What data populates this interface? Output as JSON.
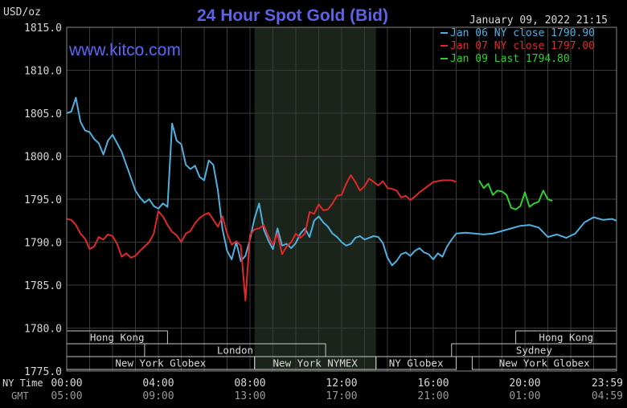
{
  "chart_data": {
    "type": "line",
    "title": "24 Hour Spot Gold (Bid)",
    "website": "www.kitco.com",
    "timestamp": "January 09, 2022 21:15",
    "unit_label": "USD/oz",
    "y_ticks": [
      1775.0,
      1780.0,
      1785.0,
      1790.0,
      1795.0,
      1800.0,
      1805.0,
      1810.0,
      1815.0
    ],
    "ylim": [
      1775.0,
      1815.0
    ],
    "xlim": [
      0,
      24
    ],
    "x_row_label": "NY Time",
    "gmt_row_label": "GMT",
    "x_ticks": [
      {
        "hour": 0,
        "ny": "00:00",
        "gmt": "05:00"
      },
      {
        "hour": 4,
        "ny": "04:00",
        "gmt": "09:00"
      },
      {
        "hour": 8,
        "ny": "08:00",
        "gmt": "13:00"
      },
      {
        "hour": 12,
        "ny": "12:00",
        "gmt": "17:00"
      },
      {
        "hour": 16,
        "ny": "16:00",
        "gmt": "21:00"
      },
      {
        "hour": 20,
        "ny": "20:00",
        "gmt": "01:00"
      },
      {
        "hour": 24,
        "ny": "23:59",
        "gmt": "04:59"
      }
    ],
    "highlight_band": {
      "start_hour": 8.2,
      "end_hour": 13.5
    },
    "grid": true,
    "legend_position": "top-right",
    "sessions": [
      {
        "label": "Hong Kong",
        "row": 0,
        "start": 0,
        "end": 4.4
      },
      {
        "label": "London",
        "row": 1,
        "start": 3.4,
        "end": 11.3
      },
      {
        "label": "New York Globex",
        "row": 2,
        "start": 0,
        "end": 8.2
      },
      {
        "label": "New York NYMEX",
        "row": 2,
        "start": 8.2,
        "end": 13.5
      },
      {
        "label": "NY Globex",
        "row": 2,
        "start": 13.5,
        "end": 17.0
      },
      {
        "label": "Hong Kong",
        "row": 0,
        "start": 19.6,
        "end": 24
      },
      {
        "label": "Sydney",
        "row": 1,
        "start": 16.8,
        "end": 24
      },
      {
        "label": "New York Globex",
        "row": 2,
        "start": 17.7,
        "end": 24
      }
    ],
    "series": [
      {
        "name": "Jan 06 NY close 1790.90",
        "color": "#4fb0e0",
        "x": [
          0,
          0.2,
          0.4,
          0.6,
          0.8,
          1.0,
          1.2,
          1.4,
          1.6,
          1.8,
          2.0,
          2.2,
          2.4,
          2.6,
          2.8,
          3.0,
          3.2,
          3.4,
          3.6,
          3.8,
          4.0,
          4.2,
          4.4,
          4.6,
          4.8,
          5.0,
          5.2,
          5.4,
          5.6,
          5.8,
          6.0,
          6.2,
          6.4,
          6.6,
          6.8,
          7.0,
          7.2,
          7.4,
          7.6,
          7.8,
          8.0,
          8.2,
          8.4,
          8.6,
          8.8,
          9.0,
          9.2,
          9.4,
          9.6,
          9.8,
          10.0,
          10.2,
          10.4,
          10.6,
          10.8,
          11.0,
          11.2,
          11.4,
          11.6,
          11.8,
          12.0,
          12.2,
          12.4,
          12.6,
          12.8,
          13.0,
          13.2,
          13.4,
          13.6,
          13.8,
          14.0,
          14.2,
          14.4,
          14.6,
          14.8,
          15.0,
          15.2,
          15.4,
          15.6,
          15.8,
          16.0,
          16.2,
          16.4,
          16.6,
          16.8,
          17.0,
          17.4,
          17.8,
          18.2,
          18.6,
          19.0,
          19.4,
          19.8,
          20.2,
          20.6,
          21.0,
          21.4,
          21.8,
          22.2,
          22.6,
          23.0,
          23.4,
          23.8,
          24.0
        ],
        "values": [
          1805.0,
          1805.2,
          1806.8,
          1804.0,
          1803.0,
          1802.8,
          1802.0,
          1801.5,
          1800.2,
          1801.8,
          1802.5,
          1801.5,
          1800.5,
          1799.0,
          1797.5,
          1796.0,
          1795.2,
          1794.6,
          1795.0,
          1794.2,
          1793.9,
          1794.5,
          1794.1,
          1803.8,
          1801.8,
          1801.4,
          1799.0,
          1798.5,
          1798.9,
          1797.6,
          1797.2,
          1799.5,
          1799.0,
          1796.0,
          1791.5,
          1789.0,
          1788.0,
          1790.0,
          1787.8,
          1788.4,
          1790.3,
          1792.8,
          1794.5,
          1791.5,
          1790.2,
          1789.2,
          1791.6,
          1789.6,
          1789.8,
          1789.3,
          1789.9,
          1791.0,
          1791.6,
          1790.6,
          1792.5,
          1793.0,
          1792.3,
          1791.8,
          1791.0,
          1790.6,
          1790.0,
          1789.6,
          1789.8,
          1790.5,
          1790.7,
          1790.3,
          1790.5,
          1790.7,
          1790.6,
          1789.9,
          1788.2,
          1787.3,
          1787.8,
          1788.6,
          1788.8,
          1788.4,
          1789.0,
          1789.3,
          1788.8,
          1788.6,
          1788.0,
          1788.7,
          1788.3,
          1789.5,
          1790.3,
          1791.0,
          1791.1,
          1791.0,
          1790.9,
          1791.0,
          1791.3,
          1791.6,
          1791.9,
          1792.0,
          1791.7,
          1790.6,
          1790.9,
          1790.5,
          1791.0,
          1792.3,
          1792.9,
          1792.6,
          1792.7,
          1792.5
        ]
      },
      {
        "name": "Jan 07 NY close 1797.00",
        "color": "#e02828",
        "x": [
          0,
          0.2,
          0.4,
          0.6,
          0.8,
          1.0,
          1.2,
          1.4,
          1.6,
          1.8,
          2.0,
          2.2,
          2.4,
          2.6,
          2.8,
          3.0,
          3.2,
          3.4,
          3.6,
          3.8,
          4.0,
          4.2,
          4.4,
          4.6,
          4.8,
          5.0,
          5.2,
          5.4,
          5.6,
          5.8,
          6.0,
          6.2,
          6.4,
          6.6,
          6.8,
          7.0,
          7.2,
          7.4,
          7.6,
          7.8,
          8.0,
          8.2,
          8.4,
          8.6,
          8.8,
          9.0,
          9.2,
          9.4,
          9.6,
          9.8,
          10.0,
          10.2,
          10.4,
          10.6,
          10.8,
          11.0,
          11.2,
          11.4,
          11.6,
          11.8,
          12.0,
          12.2,
          12.4,
          12.6,
          12.8,
          13.0,
          13.2,
          13.4,
          13.6,
          13.8,
          14.0,
          14.2,
          14.4,
          14.6,
          14.8,
          15.0,
          15.2,
          15.4,
          15.6,
          15.8,
          16.0,
          16.2,
          16.4,
          16.6,
          16.8,
          17.0
        ],
        "values": [
          1792.7,
          1792.6,
          1792.0,
          1791.0,
          1790.4,
          1789.2,
          1789.5,
          1790.6,
          1790.3,
          1790.9,
          1790.7,
          1789.8,
          1788.3,
          1788.7,
          1788.2,
          1788.4,
          1789.0,
          1789.5,
          1790.0,
          1791.0,
          1793.6,
          1793.0,
          1792.0,
          1791.2,
          1790.8,
          1790.0,
          1791.0,
          1791.3,
          1792.2,
          1792.8,
          1793.2,
          1793.4,
          1792.6,
          1791.8,
          1793.0,
          1791.0,
          1789.7,
          1790.1,
          1789.6,
          1783.2,
          1790.8,
          1791.5,
          1791.6,
          1792.0,
          1790.7,
          1789.7,
          1791.0,
          1788.6,
          1789.5,
          1790.0,
          1791.0,
          1790.5,
          1791.0,
          1793.5,
          1793.3,
          1794.4,
          1793.7,
          1793.8,
          1794.5,
          1795.4,
          1795.5,
          1796.8,
          1797.8,
          1797.0,
          1796.0,
          1796.5,
          1797.4,
          1797.0,
          1796.6,
          1797.1,
          1796.3,
          1796.2,
          1796.0,
          1795.2,
          1795.4,
          1794.9,
          1795.3,
          1795.8,
          1796.2,
          1796.6,
          1797.0,
          1797.1,
          1797.2,
          1797.2,
          1797.2,
          1797.0
        ]
      },
      {
        "name": "Jan 09 Last 1794.80",
        "color": "#2ed02e",
        "x": [
          18.0,
          18.2,
          18.4,
          18.6,
          18.8,
          19.0,
          19.2,
          19.4,
          19.6,
          19.8,
          20.0,
          20.2,
          20.4,
          20.6,
          20.8,
          21.0,
          21.2
        ],
        "values": [
          1797.2,
          1796.3,
          1796.8,
          1795.5,
          1796.0,
          1795.9,
          1795.5,
          1794.0,
          1793.8,
          1794.2,
          1795.8,
          1794.1,
          1794.5,
          1794.7,
          1796.0,
          1795.0,
          1794.8
        ]
      }
    ]
  }
}
